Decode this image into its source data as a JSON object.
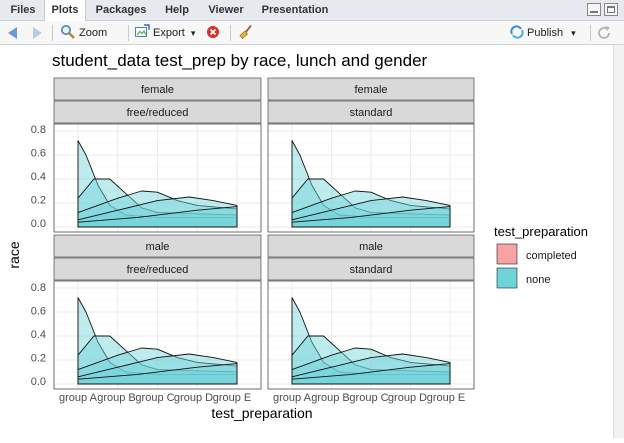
{
  "tabs": [
    {
      "label": "Files",
      "active": false
    },
    {
      "label": "Plots",
      "active": true
    },
    {
      "label": "Packages",
      "active": false
    },
    {
      "label": "Help",
      "active": false
    },
    {
      "label": "Viewer",
      "active": false
    },
    {
      "label": "Presentation",
      "active": false
    }
  ],
  "toolbar": {
    "zoom_label": "Zoom",
    "export_label": "Export",
    "export_caret": "▾",
    "publish_label": "Publish",
    "publish_caret": "▾"
  },
  "colors": {
    "completed": "#F8A3A3",
    "none": "#6FD3DA",
    "strip_bg": "#D9D9D9",
    "grid": "#EBEBEB"
  },
  "chart_data": {
    "type": "area",
    "subtype": "overlapping density curves, faceted",
    "title": "student_data test_prep by race, lunch and gender",
    "xlabel": "test_preparation",
    "ylabel": "race",
    "x_ticks": [
      "group A",
      "group B",
      "group C",
      "group D",
      "group E"
    ],
    "y_ticks": [
      "0.0",
      "0.2",
      "0.4",
      "0.6",
      "0.8"
    ],
    "ylim": [
      0,
      0.8
    ],
    "grid": true,
    "legend": {
      "title": "test_preparation",
      "position": "right",
      "entries": [
        {
          "label": "completed",
          "color": "#F8A3A3"
        },
        {
          "label": "none",
          "color": "#6FD3DA"
        }
      ]
    },
    "facets": [
      {
        "gender": "female",
        "lunch": "free/reduced",
        "curves": [
          {
            "x": [
              1,
              1.2,
              1.5,
              1.8,
              2.2,
              3.0,
              5.0
            ],
            "y": [
              0.72,
              0.6,
              0.35,
              0.18,
              0.1,
              0.08,
              0.08
            ]
          },
          {
            "x": [
              1,
              1.4,
              1.8,
              2.2,
              2.6,
              3.0,
              5.0
            ],
            "y": [
              0.24,
              0.4,
              0.4,
              0.28,
              0.16,
              0.12,
              0.1
            ]
          },
          {
            "x": [
              1,
              2.0,
              2.6,
              3.0,
              3.5,
              4.0,
              5.0
            ],
            "y": [
              0.12,
              0.24,
              0.3,
              0.29,
              0.22,
              0.18,
              0.15
            ]
          },
          {
            "x": [
              1,
              2.0,
              3.0,
              3.8,
              4.4,
              5.0
            ],
            "y": [
              0.06,
              0.14,
              0.22,
              0.25,
              0.22,
              0.18
            ]
          },
          {
            "x": [
              1,
              2.5,
              4.0,
              5.0
            ],
            "y": [
              0.04,
              0.08,
              0.14,
              0.17
            ]
          }
        ]
      },
      {
        "gender": "female",
        "lunch": "standard",
        "curves": [
          {
            "x": [
              1,
              1.2,
              1.5,
              1.8,
              2.2,
              3.0,
              5.0
            ],
            "y": [
              0.72,
              0.6,
              0.35,
              0.18,
              0.1,
              0.08,
              0.08
            ]
          },
          {
            "x": [
              1,
              1.4,
              1.8,
              2.2,
              2.6,
              3.0,
              5.0
            ],
            "y": [
              0.24,
              0.4,
              0.4,
              0.28,
              0.16,
              0.12,
              0.1
            ]
          },
          {
            "x": [
              1,
              2.0,
              2.6,
              3.0,
              3.5,
              4.0,
              5.0
            ],
            "y": [
              0.12,
              0.24,
              0.3,
              0.29,
              0.22,
              0.18,
              0.15
            ]
          },
          {
            "x": [
              1,
              2.0,
              3.0,
              3.8,
              4.4,
              5.0
            ],
            "y": [
              0.06,
              0.14,
              0.22,
              0.25,
              0.22,
              0.18
            ]
          },
          {
            "x": [
              1,
              2.5,
              4.0,
              5.0
            ],
            "y": [
              0.04,
              0.08,
              0.14,
              0.17
            ]
          }
        ]
      },
      {
        "gender": "male",
        "lunch": "free/reduced",
        "curves": [
          {
            "x": [
              1,
              1.2,
              1.5,
              1.8,
              2.2,
              3.0,
              5.0
            ],
            "y": [
              0.72,
              0.6,
              0.35,
              0.18,
              0.1,
              0.08,
              0.08
            ]
          },
          {
            "x": [
              1,
              1.4,
              1.8,
              2.2,
              2.6,
              3.0,
              5.0
            ],
            "y": [
              0.24,
              0.4,
              0.4,
              0.28,
              0.16,
              0.12,
              0.1
            ]
          },
          {
            "x": [
              1,
              2.0,
              2.6,
              3.0,
              3.5,
              4.0,
              5.0
            ],
            "y": [
              0.12,
              0.24,
              0.3,
              0.29,
              0.22,
              0.18,
              0.15
            ]
          },
          {
            "x": [
              1,
              2.0,
              3.0,
              3.8,
              4.4,
              5.0
            ],
            "y": [
              0.06,
              0.14,
              0.22,
              0.25,
              0.22,
              0.18
            ]
          },
          {
            "x": [
              1,
              2.5,
              4.0,
              5.0
            ],
            "y": [
              0.04,
              0.08,
              0.14,
              0.17
            ]
          }
        ]
      },
      {
        "gender": "male",
        "lunch": "standard",
        "curves": [
          {
            "x": [
              1,
              1.2,
              1.5,
              1.8,
              2.2,
              3.0,
              5.0
            ],
            "y": [
              0.72,
              0.6,
              0.35,
              0.18,
              0.1,
              0.08,
              0.08
            ]
          },
          {
            "x": [
              1,
              1.4,
              1.8,
              2.2,
              2.6,
              3.0,
              5.0
            ],
            "y": [
              0.24,
              0.4,
              0.4,
              0.28,
              0.16,
              0.12,
              0.1
            ]
          },
          {
            "x": [
              1,
              2.0,
              2.6,
              3.0,
              3.5,
              4.0,
              5.0
            ],
            "y": [
              0.12,
              0.24,
              0.3,
              0.29,
              0.22,
              0.18,
              0.15
            ]
          },
          {
            "x": [
              1,
              2.0,
              3.0,
              3.8,
              4.4,
              5.0
            ],
            "y": [
              0.06,
              0.14,
              0.22,
              0.25,
              0.22,
              0.18
            ]
          },
          {
            "x": [
              1,
              2.5,
              4.0,
              5.0
            ],
            "y": [
              0.04,
              0.08,
              0.14,
              0.17
            ]
          }
        ]
      }
    ]
  }
}
